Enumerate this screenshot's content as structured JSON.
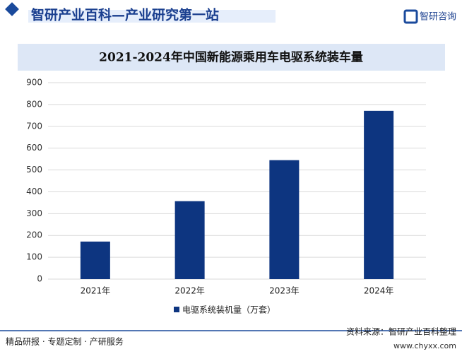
{
  "header": {
    "site": "智研产业百科—产业研究第一站",
    "logo": "智研咨询"
  },
  "chart_data": {
    "type": "bar",
    "title": "2021-2024年中国新能源乘用车电驱系统装车量",
    "categories": [
      "2021年",
      "2022年",
      "2023年",
      "2024年"
    ],
    "series": [
      {
        "name": "电驱系统装机量（万套）",
        "color": "#0d3580",
        "values": [
          172,
          357,
          545,
          771
        ]
      }
    ],
    "ylim": [
      0,
      900
    ],
    "yticks": [
      0,
      100,
      200,
      300,
      400,
      500,
      600,
      700,
      800,
      900
    ],
    "grid": true
  },
  "footer": {
    "left": "精品研报 · 专题定制 · 产研服务",
    "source": "资料来源：智研产业百科整理",
    "url": "www.chyxx.com"
  }
}
